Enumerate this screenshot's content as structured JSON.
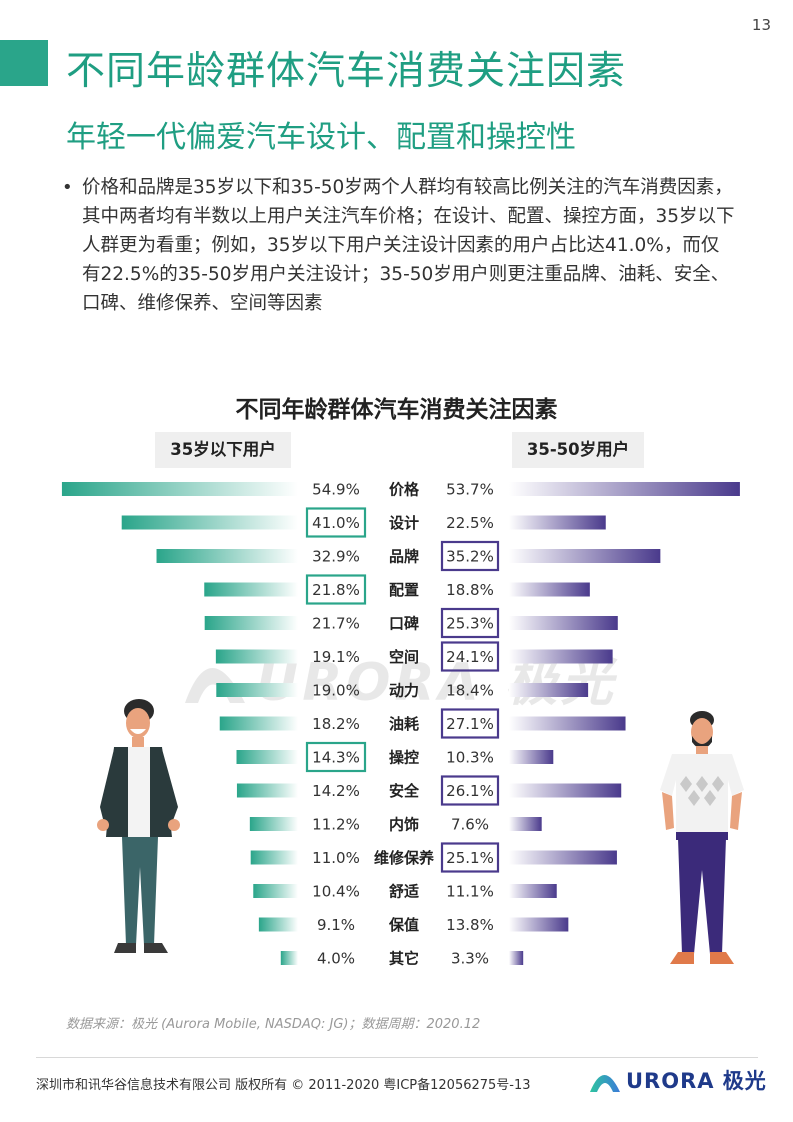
{
  "page_number": "13",
  "main_title": "不同年龄群体汽车消费关注因素",
  "sub_title": "年轻一代偏爱汽车设计、配置和操控性",
  "bullet": "价格和品牌是35岁以下和35-50岁两个人群均有较高比例关注的汽车消费因素，其中两者均有半数以上用户关注汽车价格；在设计、配置、操控方面，35岁以下人群更为看重；例如，35岁以下用户关注设计因素的用户占比达41.0%，而仅有22.5%的35-50岁用户关注设计；35-50岁用户则更注重品牌、油耗、安全、口碑、维修保养、空间等因素",
  "colors": {
    "accent_green": "#2aa58a",
    "accent_purple": "#4a3a8c"
  },
  "chart_data": {
    "type": "bar",
    "title": "不同年龄群体汽车消费关注因素",
    "categories": [
      "价格",
      "设计",
      "品牌",
      "配置",
      "口碑",
      "空间",
      "动力",
      "油耗",
      "操控",
      "安全",
      "内饰",
      "维修保养",
      "舒适",
      "保值",
      "其它"
    ],
    "series": [
      {
        "name": "35岁以下用户",
        "values": [
          54.9,
          41.0,
          32.9,
          21.8,
          21.7,
          19.1,
          19.0,
          18.2,
          14.3,
          14.2,
          11.2,
          11.0,
          10.4,
          9.1,
          4.0
        ],
        "labels": [
          "54.9%",
          "41.0%",
          "32.9%",
          "21.8%",
          "21.7%",
          "19.1%",
          "19.0%",
          "18.2%",
          "14.3%",
          "14.2%",
          "11.2%",
          "11.0%",
          "10.4%",
          "9.1%",
          "4.0%"
        ],
        "highlighted": [
          "设计",
          "配置",
          "操控"
        ],
        "color": "#2aa58a"
      },
      {
        "name": "35-50岁用户",
        "values": [
          53.7,
          22.5,
          35.2,
          18.8,
          25.3,
          24.1,
          18.4,
          27.1,
          10.3,
          26.1,
          7.6,
          25.1,
          11.1,
          13.8,
          3.3
        ],
        "labels": [
          "53.7%",
          "22.5%",
          "35.2%",
          "18.8%",
          "25.3%",
          "24.1%",
          "18.4%",
          "27.1%",
          "10.3%",
          "26.1%",
          "7.6%",
          "25.1%",
          "11.1%",
          "13.8%",
          "3.3%"
        ],
        "highlighted": [
          "品牌",
          "口碑",
          "空间",
          "油耗",
          "安全",
          "维修保养"
        ],
        "color": "#4a3a8c"
      }
    ]
  },
  "source_note": "数据来源：极光 (Aurora Mobile, NASDAQ: JG)；数据周期：2020.12",
  "copyright": "深圳市和讯华谷信息技术有限公司 版权所有 © 2011-2020 粤ICP备12056275号-13",
  "logo_text": "URORA 极光",
  "watermark_text": "URORA 极光",
  "icons": [
    "aurora-logo-icon",
    "young-man-illustration",
    "middle-aged-man-illustration"
  ]
}
